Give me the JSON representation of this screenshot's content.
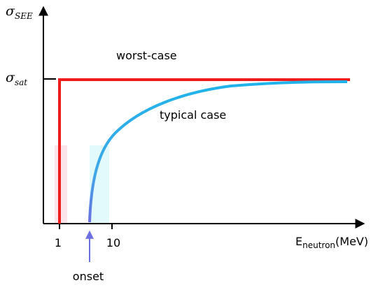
{
  "y_axis": {
    "symbol": "σ",
    "subscript": "SEE"
  },
  "saturation": {
    "symbol": "σ",
    "subscript": "sat"
  },
  "curves": {
    "worst": "worst-case",
    "typical": "typical case"
  },
  "x_axis": {
    "tick_1": "1",
    "tick_10": "10",
    "symbol": "E",
    "subscript": "neutron",
    "unit": "(MeV)"
  },
  "onset": "onset"
}
